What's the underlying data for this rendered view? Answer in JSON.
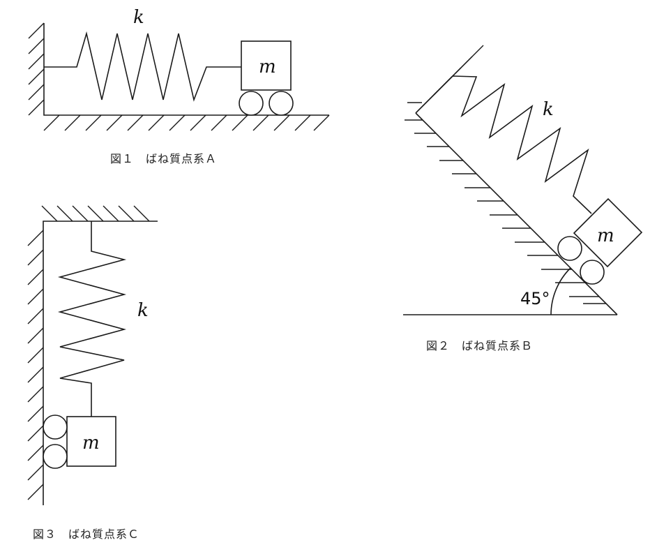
{
  "figures": {
    "fig1": {
      "caption": "図１　ばね質点系Ａ",
      "spring_label": "k",
      "mass_label": "m"
    },
    "fig2": {
      "caption": "図２　ばね質点系Ｂ",
      "spring_label": "k",
      "mass_label": "m",
      "angle_label": "45°"
    },
    "fig3": {
      "caption": "図３　ばね質点系Ｃ",
      "spring_label": "k",
      "mass_label": "m"
    }
  }
}
